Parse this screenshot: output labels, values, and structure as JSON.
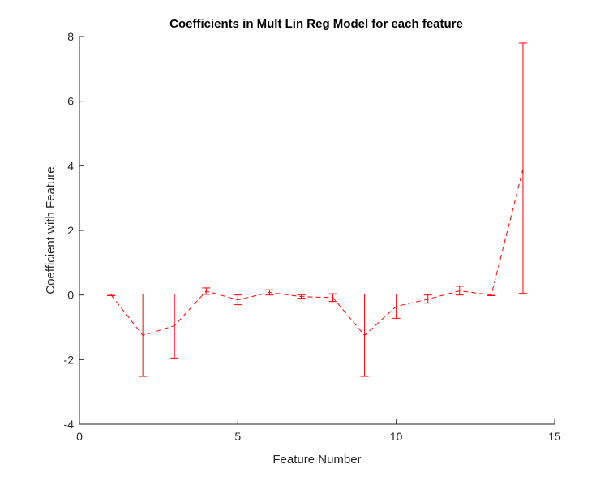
{
  "chart_data": {
    "type": "line",
    "title": "Coefficients in Mult Lin Reg Model for each feature",
    "xlabel": "Feature Number",
    "ylabel": "Coefficient with Feature",
    "xlim": [
      0,
      15
    ],
    "ylim": [
      -4,
      8
    ],
    "xticks": [
      0,
      5,
      10,
      15
    ],
    "yticks": [
      -4,
      -2,
      0,
      2,
      4,
      6,
      8
    ],
    "grid": false,
    "line_style": "dashed",
    "color": "#ff0000",
    "series": [
      {
        "x": [
          1,
          2,
          3,
          4,
          5,
          6,
          7,
          8,
          9,
          10,
          11,
          12,
          13,
          14
        ],
        "y": [
          0.0,
          -1.25,
          -0.95,
          0.12,
          -0.15,
          0.08,
          -0.05,
          -0.08,
          -1.25,
          -0.35,
          -0.13,
          0.13,
          0.0,
          3.9
        ],
        "lower": [
          -0.02,
          -2.52,
          -1.95,
          0.02,
          -0.3,
          0.0,
          -0.1,
          -0.2,
          -2.52,
          -0.72,
          -0.25,
          0.0,
          -0.02,
          0.05
        ],
        "upper": [
          0.02,
          0.03,
          0.03,
          0.22,
          0.0,
          0.16,
          0.0,
          0.04,
          0.03,
          0.03,
          0.0,
          0.27,
          0.02,
          7.8
        ]
      }
    ]
  }
}
